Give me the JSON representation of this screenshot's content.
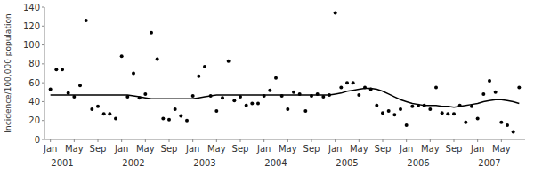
{
  "chart_data": {
    "type": "line",
    "ylabel": "Incidence/100,000 population",
    "categories": [
      "Jan",
      null,
      null,
      null,
      "May",
      null,
      null,
      null,
      "Sep",
      null,
      null,
      null,
      "Jan",
      null,
      null,
      null,
      "May",
      null,
      null,
      null,
      "Sep",
      null,
      null,
      null,
      "Jan",
      null,
      null,
      null,
      "May",
      null,
      null,
      null,
      "Sep",
      null,
      null,
      null,
      "Jan",
      null,
      null,
      null,
      "May",
      null,
      null,
      null,
      "Sep",
      null,
      null,
      null,
      "Jan",
      null,
      null,
      null,
      "May",
      null,
      null,
      null,
      "Sep",
      null,
      null,
      null,
      "Jan",
      null,
      null,
      null,
      "May",
      null,
      null,
      null,
      "Sep",
      null,
      null,
      null,
      "Jan",
      null,
      null,
      null,
      "May",
      null,
      null,
      null
    ],
    "series": [
      {
        "type": "scatter",
        "marker": "circle",
        "color": "#000000",
        "values": [
          53,
          74,
          74,
          49,
          45,
          57,
          126,
          32,
          35,
          27,
          27,
          22,
          88,
          45,
          70,
          44,
          48,
          113,
          85,
          22,
          21,
          32,
          25,
          20,
          46,
          67,
          77,
          46,
          30,
          44,
          83,
          41,
          45,
          36,
          38,
          38,
          46,
          52,
          65,
          46,
          32,
          50,
          48,
          30,
          46,
          48,
          45,
          47,
          134,
          55,
          60,
          60,
          47,
          55,
          53,
          36,
          28,
          30,
          26,
          32,
          15,
          35,
          36,
          36,
          32,
          55,
          28,
          27,
          27,
          36,
          18,
          35,
          22,
          48,
          62,
          50,
          18,
          15,
          8,
          55
        ]
      },
      {
        "type": "line",
        "line_style": "solid",
        "color": "#000000",
        "values": [
          47,
          47,
          47,
          47,
          47,
          47,
          47,
          47,
          47,
          47,
          47,
          47,
          47,
          47,
          46,
          45,
          44,
          43,
          43,
          43,
          43,
          43,
          43,
          43,
          43,
          44,
          45,
          46,
          47,
          47,
          47,
          47,
          47,
          47,
          47,
          47,
          47,
          47,
          47,
          47,
          47,
          47,
          47,
          47,
          47,
          47,
          47,
          47,
          48,
          49,
          51,
          52,
          53,
          54,
          54,
          53,
          51,
          48,
          45,
          42,
          40,
          38,
          37,
          36,
          36,
          36,
          35,
          35,
          34,
          35,
          36,
          37,
          38,
          40,
          41,
          42,
          42,
          41,
          40,
          38
        ]
      }
    ],
    "annotations": [
      {
        "text": "2001",
        "x": 2
      },
      {
        "text": "2002",
        "x": 14
      },
      {
        "text": "2003",
        "x": 26
      },
      {
        "text": "2004",
        "x": 38
      },
      {
        "text": "2005",
        "x": 50
      },
      {
        "text": "2006",
        "x": 62
      },
      {
        "text": "2007",
        "x": 74
      }
    ],
    "ylim": [
      0,
      140
    ],
    "yticks": [
      0,
      20,
      40,
      60,
      80,
      100,
      120,
      140
    ],
    "grid": false
  }
}
